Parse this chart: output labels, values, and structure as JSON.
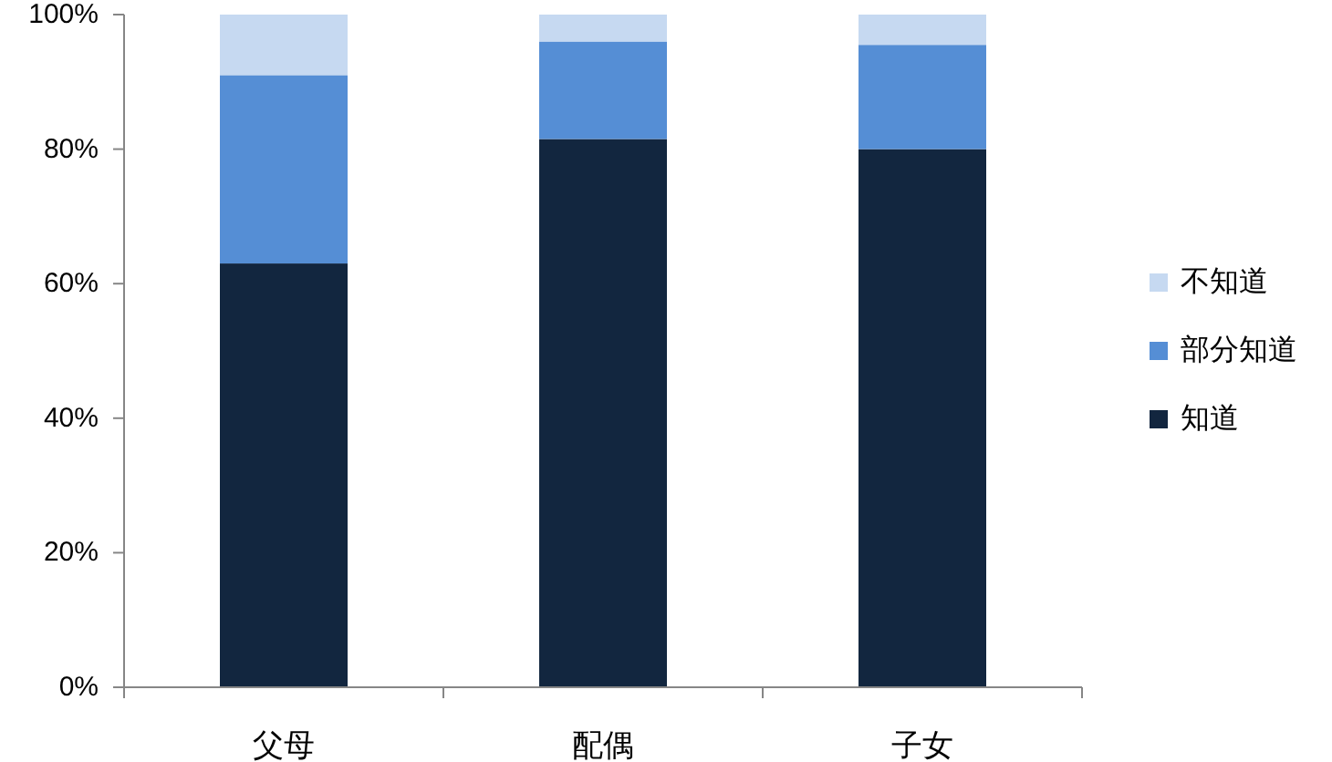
{
  "chart_data": {
    "type": "bar",
    "stacked": true,
    "categories": [
      "父母",
      "配偶",
      "子女"
    ],
    "series": [
      {
        "name": "知道",
        "color": "#12263f",
        "values": [
          63,
          81.5,
          80
        ]
      },
      {
        "name": "部分知道",
        "color": "#558ed5",
        "values": [
          28,
          14.5,
          15.5
        ]
      },
      {
        "name": "不知道",
        "color": "#c6d9f1",
        "values": [
          9,
          4,
          4.5
        ]
      }
    ],
    "ylim": [
      0,
      100
    ],
    "yticks": [
      {
        "value": 0,
        "label": "0%"
      },
      {
        "value": 20,
        "label": "20%"
      },
      {
        "value": 40,
        "label": "40%"
      },
      {
        "value": 60,
        "label": "60%"
      },
      {
        "value": 80,
        "label": "80%"
      },
      {
        "value": 100,
        "label": "100%"
      }
    ],
    "grid": false,
    "legend": "right"
  }
}
